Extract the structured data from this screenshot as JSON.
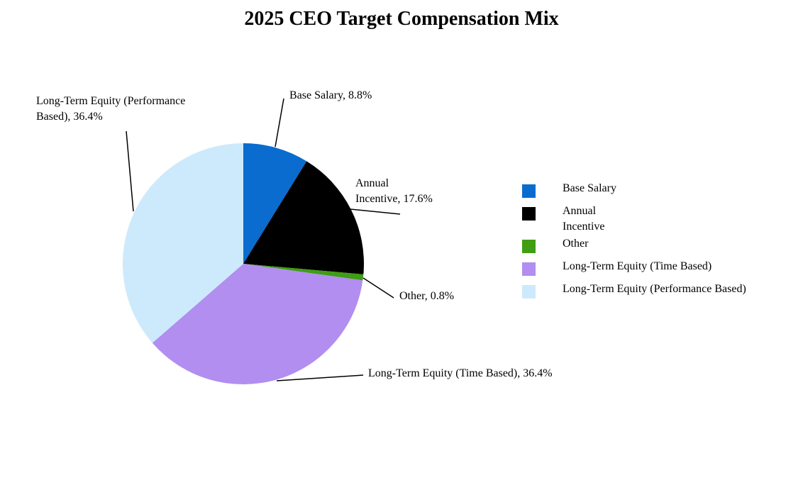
{
  "title": "2025 CEO Target Compensation Mix",
  "chart_data": {
    "type": "pie",
    "title": "2025 CEO Target Compensation Mix",
    "start_angle_deg": 0,
    "direction": "clockwise",
    "slices": [
      {
        "label": "Base Salary",
        "value_pct": 8.8,
        "color": "#0a6cce"
      },
      {
        "label": "Annual Incentive",
        "value_pct": 17.6,
        "color": "#000000"
      },
      {
        "label": "Other",
        "value_pct": 0.8,
        "color": "#3f9e14"
      },
      {
        "label": "Long-Term Equity (Time Based)",
        "value_pct": 36.4,
        "color": "#b18ef0"
      },
      {
        "label": "Long-Term Equity (Performance Based)",
        "value_pct": 36.4,
        "color": "#cdeafc"
      }
    ],
    "legend_position": "right",
    "data_labels": [
      "Base Salary, 8.8%",
      "Annual Incentive, 17.6%",
      "Other, 0.8%",
      "Long-Term Equity (Time Based), 36.4%",
      "Long-Term Equity (Performance Based), 36.4%"
    ]
  },
  "callouts": {
    "performance_based": "Long-Term Equity (Performance\nBased), 36.4%",
    "base_salary": "Base Salary, 8.8%",
    "annual_incentive": "Annual\nIncentive, 17.6%",
    "other": "Other, 0.8%",
    "time_based": "Long-Term Equity (Time Based), 36.4%"
  },
  "legend": {
    "items": [
      {
        "label": "Base Salary",
        "color": "#0a6cce"
      },
      {
        "label": "Annual\nIncentive",
        "color": "#000000"
      },
      {
        "label": "Other",
        "color": "#3f9e14"
      },
      {
        "label": "Long-Term Equity (Time Based)",
        "color": "#b18ef0"
      },
      {
        "label": "Long-Term Equity (Performance Based)",
        "color": "#cdeafc"
      }
    ]
  }
}
